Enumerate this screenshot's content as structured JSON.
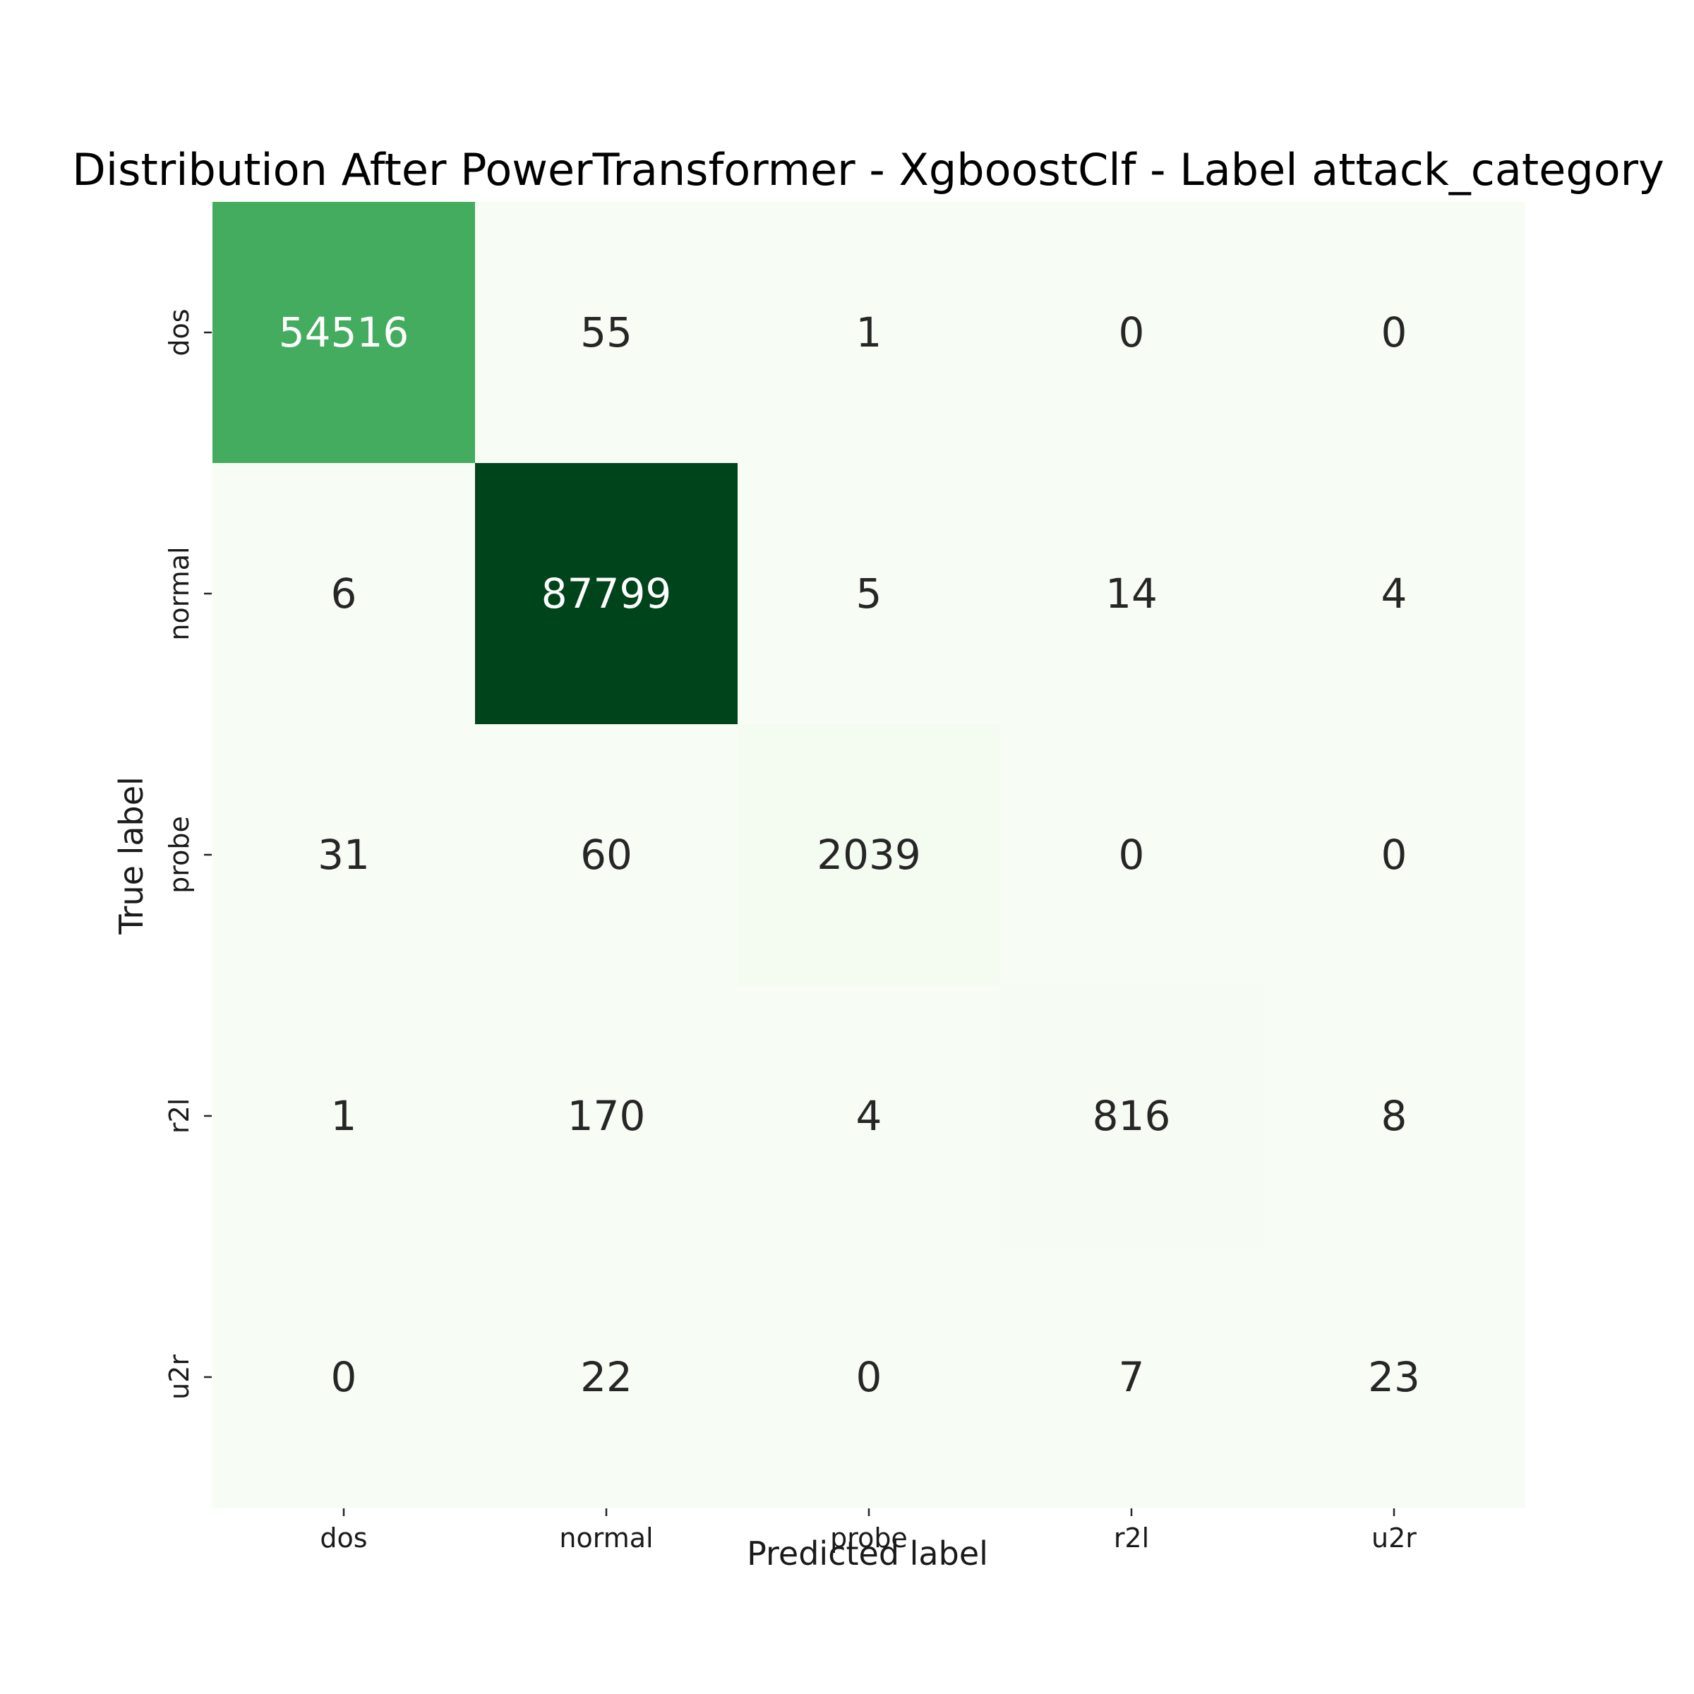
{
  "chart_data": {
    "type": "heatmap",
    "title": "Distribution After PowerTransformer - XgboostClf - Label attack_category",
    "xlabel": "Predicted label",
    "ylabel": "True label",
    "x_categories": [
      "dos",
      "normal",
      "probe",
      "r2l",
      "u2r"
    ],
    "y_categories": [
      "dos",
      "normal",
      "probe",
      "r2l",
      "u2r"
    ],
    "values": [
      [
        54516,
        55,
        1,
        0,
        0
      ],
      [
        6,
        87799,
        5,
        14,
        4
      ],
      [
        31,
        60,
        2039,
        0,
        0
      ],
      [
        1,
        170,
        4,
        816,
        8
      ],
      [
        0,
        22,
        0,
        7,
        23
      ]
    ],
    "colormap": "Greens",
    "color_low": "#f7fcf5",
    "color_high": "#00441b",
    "value_range": [
      0,
      87799
    ],
    "colorbar": false,
    "grid": false
  }
}
